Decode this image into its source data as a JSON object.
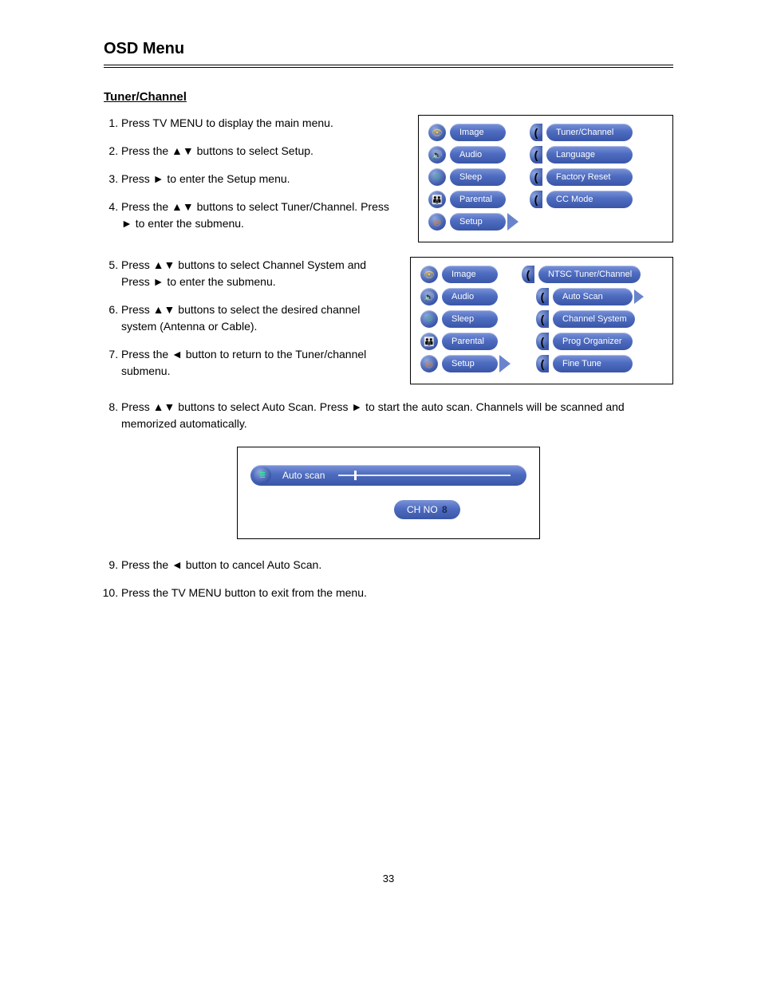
{
  "page_header": "OSD Menu",
  "section_heading": "Tuner/Channel",
  "steps": [
    "Press TV MENU to display the main menu.",
    "Press the ▲▼ buttons to select Setup.",
    "Press ► to enter the Setup menu.",
    "Press the ▲▼ buttons to select Tuner/Channel. Press ► to enter the submenu.",
    "Press ▲▼ buttons to select Channel System and Press ► to enter the submenu.",
    "Press ▲▼ buttons to select the desired channel system (Antenna or Cable).",
    "Press the ◄ button to return to the Tuner/channel submenu.",
    "Press ▲▼ buttons to select Auto Scan. Press ► to start the auto scan. Channels will be scanned and memorized automatically.",
    "Press the ◄ button to cancel Auto Scan.",
    "Press the TV MENU button to exit from the menu."
  ],
  "screenshot1": {
    "left_menu": [
      {
        "label": "Image",
        "icon": "👁",
        "icon_color": "#f5c542"
      },
      {
        "label": "Audio",
        "icon": "🔊",
        "icon_color": "#f58a1f"
      },
      {
        "label": "Sleep",
        "icon": "⏱",
        "icon_color": "#2bc46a"
      },
      {
        "label": "Parental",
        "icon": "👪",
        "icon_color": "#f5a623"
      },
      {
        "label": "Setup",
        "icon": "◎",
        "icon_color": "#f58a1f",
        "selected": true
      }
    ],
    "right_menu": [
      "Tuner/Channel",
      "Language",
      "Factory Reset",
      "CC Mode"
    ]
  },
  "screenshot2": {
    "left_menu": [
      {
        "label": "Image",
        "icon": "👁",
        "icon_color": "#f5c542"
      },
      {
        "label": "Audio",
        "icon": "🔊",
        "icon_color": "#f58a1f"
      },
      {
        "label": "Sleep",
        "icon": "⏱",
        "icon_color": "#2bc46a"
      },
      {
        "label": "Parental",
        "icon": "👪",
        "icon_color": "#f5a623"
      },
      {
        "label": "Setup",
        "icon": "◎",
        "icon_color": "#f58a1f",
        "selected": true
      }
    ],
    "header_pill": "NTSC Tuner/Channel",
    "right_menu": [
      "Auto Scan",
      "Channel System",
      "Prog Organizer",
      "Fine Tune"
    ],
    "selected_right": "Auto Scan"
  },
  "autoscan": {
    "label": "Auto scan",
    "ch_label": "CH NO",
    "ch_value": "8",
    "progress_pct": 12
  },
  "page_number": "33",
  "colors": {
    "pill_gradient_top": "#7b93d8",
    "pill_gradient_mid": "#4e6cc0",
    "pill_gradient_bot": "#3a56a8",
    "arrow_fill": "#6a84cc"
  }
}
